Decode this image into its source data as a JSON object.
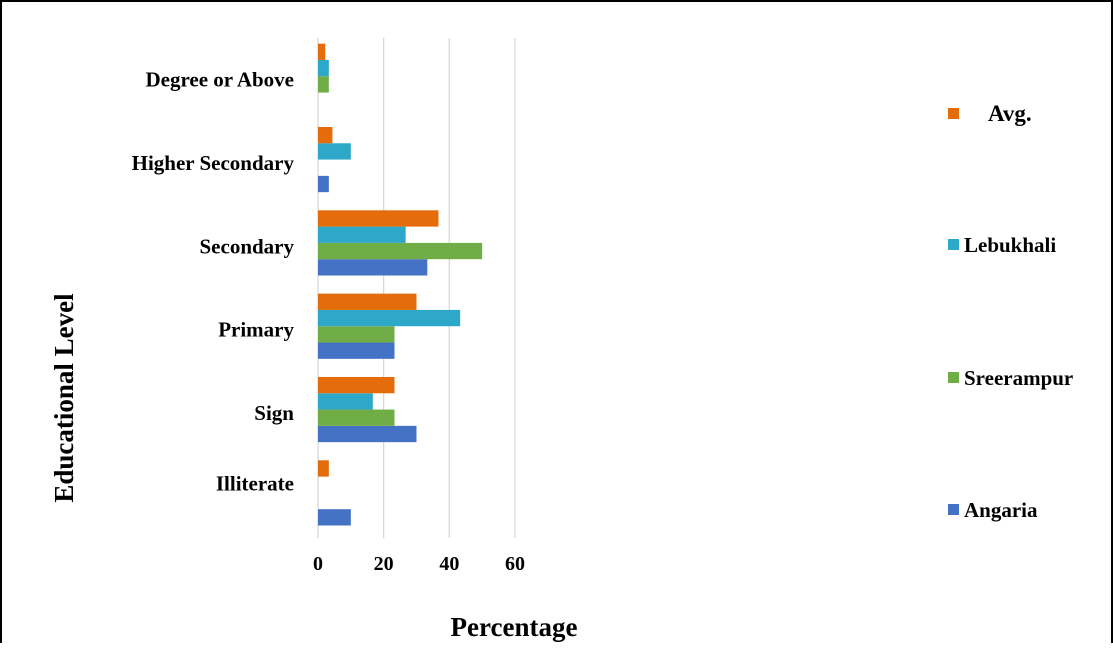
{
  "chart_data": {
    "type": "bar",
    "orientation": "horizontal",
    "categories": [
      "Illiterate",
      "Sign",
      "Primary",
      "Secondary",
      "Higher Secondary",
      "Degree or Above"
    ],
    "series": [
      {
        "name": "Angaria",
        "color": "#4472C4",
        "values": [
          10,
          30,
          23.3,
          33.3,
          3.3,
          0
        ]
      },
      {
        "name": "Sreerampur",
        "color": "#70AD47",
        "values": [
          0,
          23.3,
          23.3,
          50,
          0,
          3.3
        ]
      },
      {
        "name": "Lebukhali",
        "color": "#2EA8C9",
        "values": [
          0,
          16.7,
          43.3,
          26.7,
          10,
          3.3
        ]
      },
      {
        "name": "Avg.",
        "color": "#E46C0A",
        "values": [
          3.3,
          23.3,
          30,
          36.7,
          4.4,
          2.2
        ]
      }
    ],
    "xlabel": "Percentage",
    "ylabel": "Educational Level",
    "xlim": [
      0,
      60
    ],
    "xticks": [
      "0",
      "20",
      "40",
      "60"
    ],
    "grid": true,
    "legend_position": "right"
  }
}
